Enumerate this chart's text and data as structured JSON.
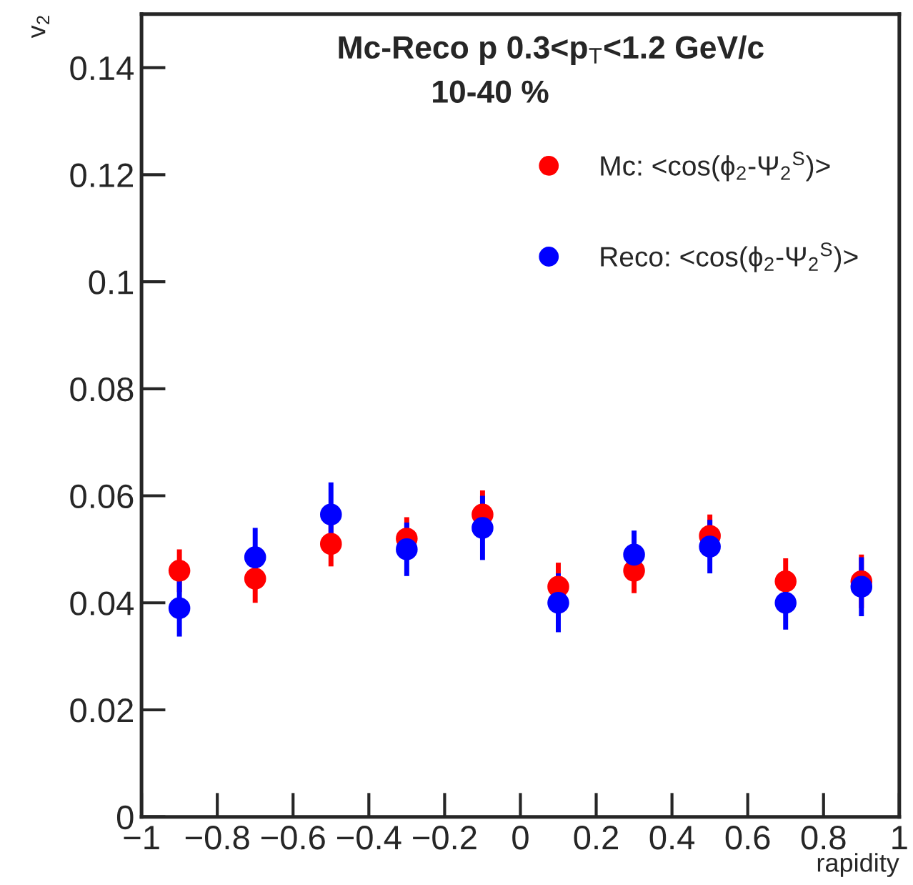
{
  "chart_data": {
    "type": "scatter",
    "title": "Mc-Reco p 0.3<p$_{T}$<1.2 GeV/c",
    "subtitle": "10-40 %",
    "xlabel": "rapidity",
    "ylabel": "v$_{2}$",
    "x": [
      -0.9,
      -0.7,
      -0.5,
      -0.3,
      -0.1,
      0.1,
      0.3,
      0.5,
      0.7,
      0.9
    ],
    "series": [
      {
        "name": "Mc: <cos(ϕ$_{2}$-Ψ$_{2}$$^{S}$)>",
        "color": "#ff0000",
        "values": [
          0.046,
          0.0445,
          0.051,
          0.052,
          0.0565,
          0.043,
          0.046,
          0.0525,
          0.044,
          0.044
        ],
        "errors": [
          0.004,
          0.0045,
          0.0042,
          0.004,
          0.0045,
          0.0045,
          0.0042,
          0.004,
          0.0043,
          0.005
        ]
      },
      {
        "name": "Reco: <cos(ϕ$_{2}$-Ψ$_{2}$$^{S}$)>",
        "color": "#0000ff",
        "values": [
          0.039,
          0.0485,
          0.0565,
          0.05,
          0.054,
          0.04,
          0.049,
          0.0505,
          0.04,
          0.043
        ],
        "errors": [
          0.0053,
          0.0055,
          0.006,
          0.005,
          0.006,
          0.0055,
          0.0045,
          0.005,
          0.005,
          0.0055
        ]
      }
    ],
    "xlim": [
      -1,
      1
    ],
    "ylim": [
      0,
      0.15
    ],
    "xticks": [
      {
        "value": -1,
        "label": "−1"
      },
      {
        "value": -0.8,
        "label": "−0.8"
      },
      {
        "value": -0.6,
        "label": "−0.6"
      },
      {
        "value": -0.4,
        "label": "−0.4"
      },
      {
        "value": -0.2,
        "label": "−0.2"
      },
      0,
      0.2,
      0.4,
      0.6,
      0.8,
      1
    ],
    "yticks": [
      0,
      0.02,
      0.04,
      0.06,
      0.08,
      0.1,
      0.12,
      0.14
    ],
    "marker": "circle",
    "legend": "top right",
    "grid": false
  }
}
